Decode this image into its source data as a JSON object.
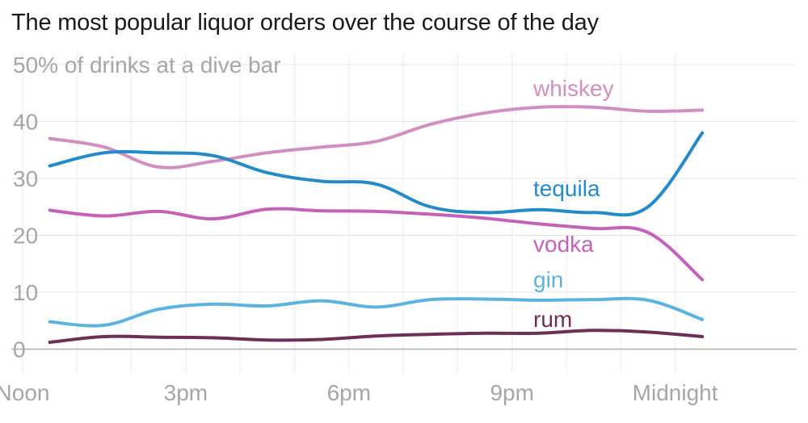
{
  "chart_data": {
    "type": "line",
    "title": "The most popular liquor orders over the course of the day",
    "ylabel": "% of drinks at a dive bar",
    "ylim": [
      0,
      50
    ],
    "yticks": [
      0,
      10,
      20,
      30,
      40,
      50
    ],
    "xlim": [
      12,
      24.75
    ],
    "x_tick_labels": [
      {
        "x": 12,
        "label": "Noon"
      },
      {
        "x": 15,
        "label": "3pm"
      },
      {
        "x": 18,
        "label": "6pm"
      },
      {
        "x": 21,
        "label": "9pm"
      },
      {
        "x": 24,
        "label": "Midnight"
      }
    ],
    "grid": true,
    "legend": "direct labels",
    "x": [
      12.5,
      13.5,
      14.5,
      15.5,
      16.5,
      17.5,
      18.5,
      19.5,
      20.5,
      21.5,
      22.5,
      23.5,
      24.5
    ],
    "series": [
      {
        "name": "whiskey",
        "color": "#d08fbf",
        "values": [
          37,
          35.5,
          32,
          33,
          34.5,
          35.5,
          36.5,
          39.5,
          41.5,
          42.5,
          42.5,
          41.8,
          42
        ]
      },
      {
        "name": "tequila",
        "color": "#238bc7",
        "values": [
          32.2,
          34.5,
          34.5,
          34,
          31,
          29.5,
          29,
          25,
          24,
          24.5,
          24,
          25,
          38
        ]
      },
      {
        "name": "vodka",
        "color": "#c462b9",
        "values": [
          24.4,
          23.4,
          24.2,
          22.9,
          24.6,
          24.3,
          24.2,
          23.7,
          23,
          22,
          21.2,
          20.5,
          12.2
        ]
      },
      {
        "name": "gin",
        "color": "#5ab4de",
        "values": [
          4.8,
          4.2,
          7,
          7.9,
          7.6,
          8.5,
          7.4,
          8.7,
          8.8,
          8.6,
          8.7,
          8.6,
          5.2
        ]
      },
      {
        "name": "rum",
        "color": "#6e2f57",
        "values": [
          1.2,
          2.2,
          2.1,
          2,
          1.6,
          1.7,
          2.3,
          2.6,
          2.8,
          2.8,
          3.3,
          3,
          2.2
        ]
      }
    ]
  }
}
